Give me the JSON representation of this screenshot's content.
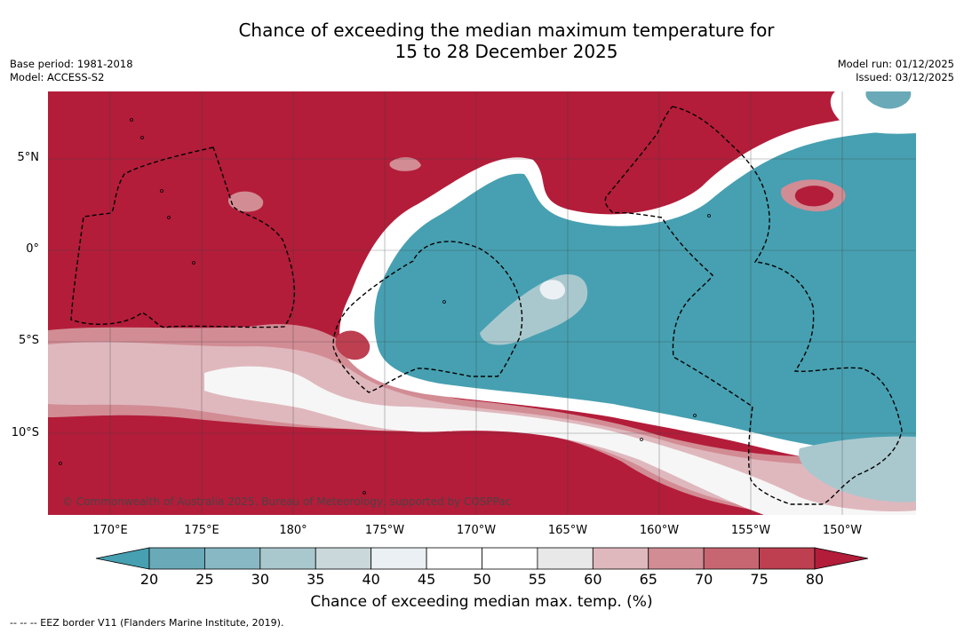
{
  "title_line1": "Chance of exceeding the median maximum temperature for",
  "title_line2": "15 to 28 December 2025",
  "base_period": "Base period: 1981-2018",
  "model": "Model: ACCESS-S2",
  "model_run": "Model run: 01/12/2025",
  "issued": "Issued: 03/12/2025",
  "map": {
    "lat_labels": [
      "5°N",
      "0°",
      "5°S",
      "10°S"
    ],
    "lon_labels": [
      "170°E",
      "175°E",
      "180°",
      "175°W",
      "170°W",
      "165°W",
      "160°W",
      "155°W",
      "150°W"
    ],
    "copyright": "© Commonwealth of Australia 2025, Bureau of Meteorology, supported by COSPPac"
  },
  "colorbar": {
    "ticks": [
      "20",
      "25",
      "30",
      "35",
      "40",
      "45",
      "50",
      "55",
      "60",
      "65",
      "70",
      "75",
      "80"
    ],
    "colors": [
      "#46a0b1",
      "#6aaab8",
      "#88b8c3",
      "#a9c8ce",
      "#cad8dc",
      "#eaf0f3",
      "#ffffff",
      "#ffffff",
      "#e8e8e8",
      "#dfb8be",
      "#d28c94",
      "#c76671",
      "#bd3f50",
      "#b31d3a"
    ],
    "label": "Chance of exceeding median max. temp. (%)"
  },
  "footnote": "--  --  -- EEZ border V11 (Flanders Marine Institute, 2019)."
}
